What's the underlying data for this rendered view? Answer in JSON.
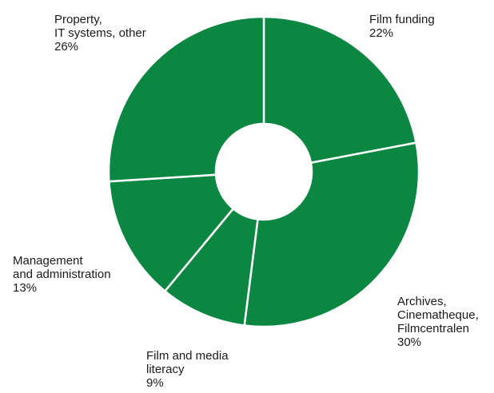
{
  "chart_data": {
    "type": "pie",
    "donut": true,
    "title": "",
    "slice_color": "#0b8742",
    "separator_color": "#ffffff",
    "legend": "none",
    "slices": [
      {
        "lines": [
          "Film funding"
        ],
        "value_label": "22%",
        "value": 22
      },
      {
        "lines": [
          "Archives,",
          "Cinematheque,",
          "Filmcentralen"
        ],
        "value_label": "30%",
        "value": 30
      },
      {
        "lines": [
          "Film and media",
          "literacy"
        ],
        "value_label": "9%",
        "value": 9
      },
      {
        "lines": [
          "Management",
          "and administration"
        ],
        "value_label": "13%",
        "value": 13
      },
      {
        "lines": [
          "Property,",
          "IT systems, other"
        ],
        "value_label": "26%",
        "value": 26
      }
    ]
  }
}
